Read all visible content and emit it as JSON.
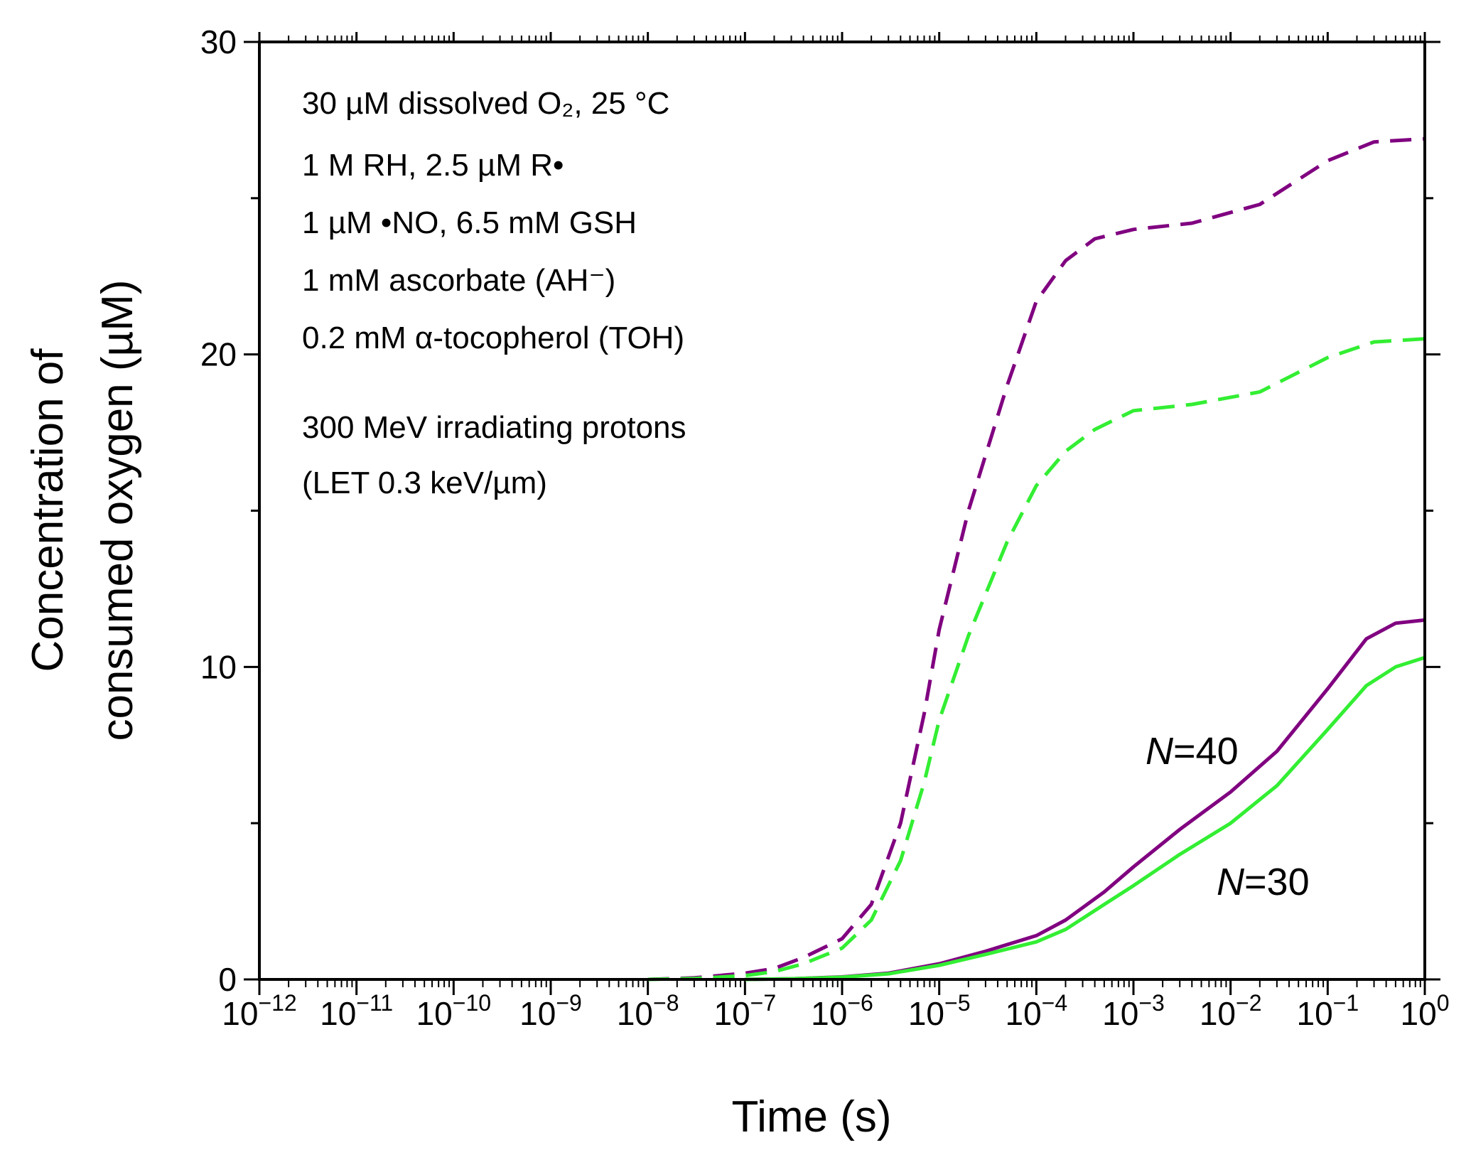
{
  "chart_data": {
    "type": "line",
    "xscale": "log",
    "xlim": [
      1e-12,
      1
    ],
    "ylim": [
      0,
      30
    ],
    "xlabel": "Time (s)",
    "ylabel_line1": "Concentration of",
    "ylabel_line2": "consumed oxygen (µM)",
    "x_tick_values": [
      1e-12,
      1e-11,
      1e-10,
      1e-09,
      1e-08,
      1e-07,
      1e-06,
      1e-05,
      0.0001,
      0.001,
      0.01,
      0.1,
      1
    ],
    "x_tick_labels": [
      {
        "base": "10",
        "exp": "−12"
      },
      {
        "base": "10",
        "exp": "−11"
      },
      {
        "base": "10",
        "exp": "−10"
      },
      {
        "base": "10",
        "exp": "−9"
      },
      {
        "base": "10",
        "exp": "−8"
      },
      {
        "base": "10",
        "exp": "−7"
      },
      {
        "base": "10",
        "exp": "−6"
      },
      {
        "base": "10",
        "exp": "−5"
      },
      {
        "base": "10",
        "exp": "−4"
      },
      {
        "base": "10",
        "exp": "−3"
      },
      {
        "base": "10",
        "exp": "−2"
      },
      {
        "base": "10",
        "exp": "−1"
      },
      {
        "base": "10",
        "exp": "0"
      }
    ],
    "y_tick_values": [
      0,
      10,
      20,
      30
    ],
    "y_tick_labels": [
      "0",
      "10",
      "20",
      "30"
    ],
    "annotations": [
      "30 µM dissolved O₂, 25 °C",
      "1 M RH, 2.5 µM R•",
      "1 µM •NO, 6.5 mM GSH",
      "1 mM ascorbate (AH⁻)",
      "0.2 mM α-tocopherol (TOH)",
      "300 MeV irradiating protons",
      "(LET 0.3 keV/µm)"
    ],
    "curve_labels": [
      {
        "italic": "N",
        "rest": "=40"
      },
      {
        "italic": "N",
        "rest": "=30"
      }
    ],
    "colors": {
      "purple": "#800080",
      "green": "#33ee33",
      "axis": "#000000"
    },
    "series": [
      {
        "color": "#800080",
        "style": "dashed",
        "x": [
          1e-08,
          3e-08,
          1e-07,
          2e-07,
          4e-07,
          1e-06,
          2e-06,
          4e-06,
          7e-06,
          1e-05,
          2e-05,
          5e-05,
          0.0001,
          0.0002,
          0.0004,
          0.001,
          0.004,
          0.02,
          0.1,
          0.3,
          1
        ],
        "y": [
          0,
          0.05,
          0.2,
          0.35,
          0.7,
          1.3,
          2.4,
          5.0,
          8.5,
          11.2,
          15.0,
          19.0,
          21.7,
          23.0,
          23.7,
          24.0,
          24.2,
          24.8,
          26.2,
          26.8,
          26.9
        ]
      },
      {
        "color": "#33ee33",
        "style": "dashed",
        "x": [
          1e-08,
          3e-08,
          1e-07,
          2e-07,
          4e-07,
          1e-06,
          2e-06,
          4e-06,
          7e-06,
          1e-05,
          2e-05,
          5e-05,
          0.0001,
          0.0002,
          0.0004,
          0.001,
          0.004,
          0.02,
          0.1,
          0.3,
          1
        ],
        "y": [
          0,
          0.03,
          0.12,
          0.25,
          0.5,
          1.0,
          1.9,
          3.8,
          6.3,
          8.3,
          11.0,
          14.0,
          15.8,
          16.9,
          17.6,
          18.2,
          18.4,
          18.8,
          19.9,
          20.4,
          20.5
        ]
      },
      {
        "color": "#800080",
        "style": "solid",
        "x": [
          1e-07,
          3e-07,
          1e-06,
          3e-06,
          1e-05,
          3e-05,
          0.0001,
          0.0002,
          0.0005,
          0.001,
          0.003,
          0.01,
          0.03,
          0.1,
          0.25,
          0.5,
          1
        ],
        "y": [
          0,
          0.02,
          0.08,
          0.2,
          0.5,
          0.9,
          1.4,
          1.9,
          2.8,
          3.6,
          4.8,
          6.0,
          7.3,
          9.3,
          10.9,
          11.4,
          11.5
        ]
      },
      {
        "color": "#33ee33",
        "style": "solid",
        "x": [
          1e-07,
          3e-07,
          1e-06,
          3e-06,
          1e-05,
          3e-05,
          0.0001,
          0.0002,
          0.0005,
          0.001,
          0.003,
          0.01,
          0.03,
          0.1,
          0.25,
          0.5,
          1
        ],
        "y": [
          0,
          0.02,
          0.07,
          0.18,
          0.45,
          0.8,
          1.2,
          1.6,
          2.4,
          3.0,
          4.0,
          5.0,
          6.2,
          8.0,
          9.4,
          10.0,
          10.3
        ]
      }
    ]
  }
}
